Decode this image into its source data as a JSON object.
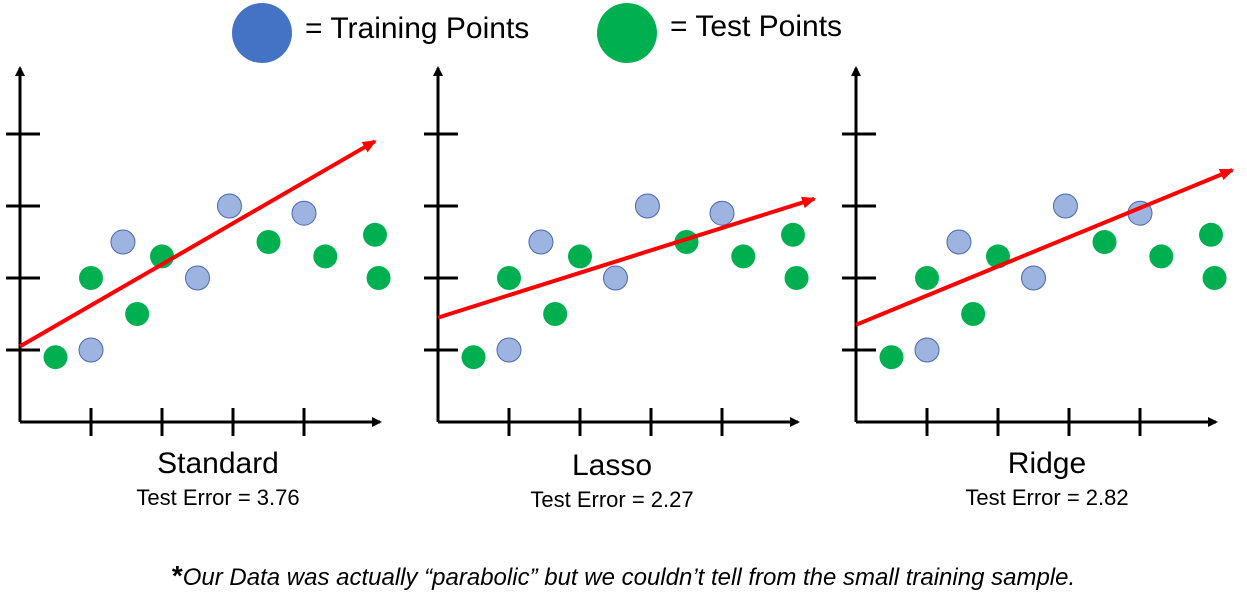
{
  "legend": {
    "training_label": "= Training Points",
    "test_label": "= Test Points",
    "training_color": "#4472c4",
    "test_color": "#00b050"
  },
  "colors": {
    "training_point": "#9db3e0",
    "training_stroke": "#4a67b0",
    "test_point": "#00b050",
    "fit_line": "#ff0000",
    "axis": "#000000"
  },
  "footnote": {
    "star": "*",
    "text": "Our Data was actually “parabolic” but we couldn’t tell from the small training sample."
  },
  "chart_data": [
    {
      "type": "scatter",
      "title": "Standard",
      "subtitle": "Test Error = 3.76",
      "xlim": [
        0,
        5
      ],
      "ylim": [
        0,
        5
      ],
      "training": [
        [
          1.0,
          1.0
        ],
        [
          1.45,
          2.5
        ],
        [
          2.5,
          2.0
        ],
        [
          2.95,
          3.0
        ],
        [
          4.0,
          2.9
        ]
      ],
      "test": [
        [
          0.5,
          0.9
        ],
        [
          1.0,
          2.0
        ],
        [
          1.65,
          1.5
        ],
        [
          2.0,
          2.3
        ],
        [
          3.5,
          2.5
        ],
        [
          4.3,
          2.3
        ],
        [
          5.0,
          2.6
        ],
        [
          5.05,
          2.0
        ]
      ],
      "fit_line": {
        "x0": 0,
        "y0": 1.05,
        "x1": 5.0,
        "y1": 3.9
      }
    },
    {
      "type": "scatter",
      "title": "Lasso",
      "subtitle": "Test Error = 2.27",
      "xlim": [
        0,
        5
      ],
      "ylim": [
        0,
        5
      ],
      "training": [
        [
          1.0,
          1.0
        ],
        [
          1.45,
          2.5
        ],
        [
          2.5,
          2.0
        ],
        [
          2.95,
          3.0
        ],
        [
          4.0,
          2.9
        ]
      ],
      "test": [
        [
          0.5,
          0.9
        ],
        [
          1.0,
          2.0
        ],
        [
          1.65,
          1.5
        ],
        [
          2.0,
          2.3
        ],
        [
          3.5,
          2.5
        ],
        [
          4.3,
          2.3
        ],
        [
          5.0,
          2.6
        ],
        [
          5.05,
          2.0
        ]
      ],
      "fit_line": {
        "x0": 0,
        "y0": 1.45,
        "x1": 5.3,
        "y1": 3.1
      }
    },
    {
      "type": "scatter",
      "title": "Ridge",
      "subtitle": "Test Error = 2.82",
      "xlim": [
        0,
        5
      ],
      "ylim": [
        0,
        5
      ],
      "training": [
        [
          1.0,
          1.0
        ],
        [
          1.45,
          2.5
        ],
        [
          2.5,
          2.0
        ],
        [
          2.95,
          3.0
        ],
        [
          4.0,
          2.9
        ]
      ],
      "test": [
        [
          0.5,
          0.9
        ],
        [
          1.0,
          2.0
        ],
        [
          1.65,
          1.5
        ],
        [
          2.0,
          2.3
        ],
        [
          3.5,
          2.5
        ],
        [
          4.3,
          2.3
        ],
        [
          5.0,
          2.6
        ],
        [
          5.05,
          2.0
        ]
      ],
      "fit_line": {
        "x0": 0,
        "y0": 1.35,
        "x1": 5.3,
        "y1": 3.5
      }
    }
  ]
}
